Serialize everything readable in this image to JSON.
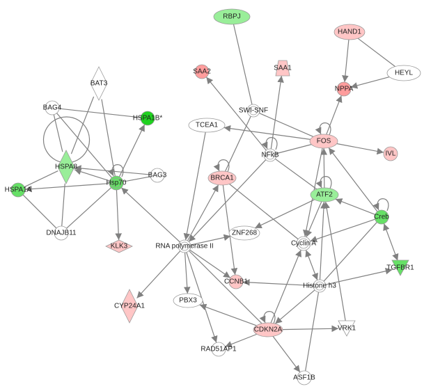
{
  "colors": {
    "white": "#ffffff",
    "pink": "#ffc6c6",
    "red": "#ff9d9d",
    "light_green": "#99ee99",
    "green": "#66e066",
    "bright_green": "#1fd21f",
    "edge": "#808080"
  },
  "nodes": [
    {
      "id": "RBPJ",
      "label": "RBPJ",
      "shape": "ellipse",
      "color": "light_green"
    },
    {
      "id": "HAND1",
      "label": "HAND1",
      "shape": "ellipse",
      "color": "pink"
    },
    {
      "id": "SAA2",
      "label": "SAA2",
      "shape": "circle",
      "color": "red"
    },
    {
      "id": "SAA1",
      "label": "SAA1",
      "shape": "trapezoid",
      "color": "pink"
    },
    {
      "id": "HEYL",
      "label": "HEYL",
      "shape": "ellipse",
      "color": "white"
    },
    {
      "id": "NPPA",
      "label": "NPPA",
      "shape": "circle",
      "color": "red"
    },
    {
      "id": "BAT3",
      "label": "BAT3",
      "shape": "diamond-tall",
      "color": "white"
    },
    {
      "id": "SWISNF",
      "label": "SWI-SNF",
      "shape": "double-circle",
      "color": "white"
    },
    {
      "id": "BAG4",
      "label": "BAG4",
      "shape": "circle",
      "color": "white"
    },
    {
      "id": "HSPA1B",
      "label": "HSPA1B*",
      "shape": "circle",
      "color": "bright_green"
    },
    {
      "id": "TCEA1",
      "label": "TCEA1",
      "shape": "ellipse",
      "color": "white"
    },
    {
      "id": "FOS",
      "label": "FOS",
      "shape": "ellipse",
      "color": "pink"
    },
    {
      "id": "IVL",
      "label": "IVL",
      "shape": "circle",
      "color": "pink"
    },
    {
      "id": "NFkB",
      "label": "NFkB",
      "shape": "double-circle",
      "color": "white"
    },
    {
      "id": "HSPA8",
      "label": "HSPA8",
      "shape": "diamond-tall",
      "color": "light_green"
    },
    {
      "id": "BAG3",
      "label": "BAG3",
      "shape": "circle",
      "color": "white"
    },
    {
      "id": "Hsp70",
      "label": "Hsp70",
      "shape": "double-circle",
      "color": "green"
    },
    {
      "id": "BRCA1",
      "label": "BRCA1",
      "shape": "ellipse",
      "color": "pink"
    },
    {
      "id": "HSPA1A",
      "label": "HSPA1A",
      "shape": "circle",
      "color": "green"
    },
    {
      "id": "ATF2",
      "label": "ATF2",
      "shape": "ellipse",
      "color": "light_green"
    },
    {
      "id": "Creb",
      "label": "Creb",
      "shape": "circle",
      "color": "green"
    },
    {
      "id": "DNAJB11",
      "label": "DNAJB11",
      "shape": "circle",
      "color": "white"
    },
    {
      "id": "ZNF268",
      "label": "ZNF268",
      "shape": "ellipse",
      "color": "white"
    },
    {
      "id": "CyclinA",
      "label": "Cyclin A",
      "shape": "double-circle",
      "color": "white"
    },
    {
      "id": "KLK3",
      "label": "KLK3",
      "shape": "diamond-wide",
      "color": "pink"
    },
    {
      "id": "RNAPII",
      "label": "RNA polymerase II",
      "shape": "double-circle",
      "color": "white"
    },
    {
      "id": "TGFBR1",
      "label": "TGFBR1",
      "shape": "triangle-down",
      "color": "green"
    },
    {
      "id": "CCNB1",
      "label": "CCNB1",
      "shape": "circle",
      "color": "pink"
    },
    {
      "id": "HistoneH3",
      "label": "Histone h3",
      "shape": "double-circle",
      "color": "white"
    },
    {
      "id": "CYP24A1",
      "label": "CYP24A1",
      "shape": "diamond-tall",
      "color": "pink"
    },
    {
      "id": "PBX3",
      "label": "PBX3",
      "shape": "ellipse",
      "color": "white"
    },
    {
      "id": "CDKN2A",
      "label": "CDKN2A",
      "shape": "ellipse",
      "color": "pink"
    },
    {
      "id": "VRK1",
      "label": "VRK1",
      "shape": "triangle-down",
      "color": "white"
    },
    {
      "id": "RAD51AP1",
      "label": "RAD51AP1",
      "shape": "circle",
      "color": "white"
    },
    {
      "id": "ASF1B",
      "label": "ASF1B",
      "shape": "circle",
      "color": "white"
    }
  ],
  "edges": [
    [
      "HSPA8",
      "BAT3",
      "line"
    ],
    [
      "BAT3",
      "Hsp70",
      "line"
    ],
    [
      "BAG4",
      "HSPA1B",
      "line"
    ],
    [
      "BAG4",
      "HSPA8",
      "line"
    ],
    [
      "BAG4",
      "Hsp70",
      "line"
    ],
    [
      "HSPA8",
      "HSPA8",
      "loop"
    ],
    [
      "Hsp70",
      "Hsp70",
      "loop"
    ],
    [
      "Hsp70",
      "HSPA1B",
      "arrow"
    ],
    [
      "BAG3",
      "HSPA8",
      "arrow"
    ],
    [
      "BAG3",
      "Hsp70",
      "line"
    ],
    [
      "Hsp70",
      "HSPA8",
      "arrow"
    ],
    [
      "Hsp70",
      "HSPA1A",
      "arrow"
    ],
    [
      "HSPA8",
      "HSPA1A",
      "line"
    ],
    [
      "HSPA1A",
      "DNAJB11",
      "line"
    ],
    [
      "HSPA8",
      "DNAJB11",
      "line"
    ],
    [
      "Hsp70",
      "DNAJB11",
      "line"
    ],
    [
      "Hsp70",
      "KLK3",
      "arrow"
    ],
    [
      "RNAPII",
      "Hsp70",
      "arrow"
    ],
    [
      "RBPJ",
      "SWISNF",
      "line"
    ],
    [
      "SWISNF",
      "BRCA1",
      "line"
    ],
    [
      "SWISNF",
      "FOS",
      "line"
    ],
    [
      "NFkB",
      "SAA2",
      "arrow"
    ],
    [
      "NFkB",
      "SAA1",
      "arrow"
    ],
    [
      "NFkB",
      "NFkB",
      "loop"
    ],
    [
      "FOS",
      "TCEA1",
      "arrow"
    ],
    [
      "FOS",
      "NFkB",
      "line"
    ],
    [
      "FOS",
      "NPPA",
      "arrow"
    ],
    [
      "HAND1",
      "NPPA",
      "arrow"
    ],
    [
      "HEYL",
      "NPPA",
      "arrow"
    ],
    [
      "HAND1",
      "HEYL",
      "line"
    ],
    [
      "FOS",
      "IVL",
      "arrow"
    ],
    [
      "FOS",
      "FOS",
      "loop"
    ],
    [
      "NFkB",
      "ATF2",
      "line"
    ],
    [
      "NFkB",
      "RNAPII",
      "arrow"
    ],
    [
      "TCEA1",
      "RNAPII",
      "arrow"
    ],
    [
      "BRCA1",
      "BRCA1",
      "loop"
    ],
    [
      "RNAPII",
      "BRCA1",
      "arrow"
    ],
    [
      "BRCA1",
      "CCNB1",
      "arrow"
    ],
    [
      "BRCA1",
      "CyclinA",
      "line"
    ],
    [
      "ATF2",
      "FOS",
      "arrow"
    ],
    [
      "ATF2",
      "ATF2",
      "loop"
    ],
    [
      "ATF2",
      "ZNF268",
      "arrow"
    ],
    [
      "ATF2",
      "CyclinA",
      "arrow"
    ],
    [
      "FOS",
      "CyclinA",
      "arrow"
    ],
    [
      "Creb",
      "FOS",
      "arrow"
    ],
    [
      "Creb",
      "ATF2",
      "arrow"
    ],
    [
      "Creb",
      "Creb",
      "loop"
    ],
    [
      "Creb",
      "CyclinA",
      "arrow"
    ],
    [
      "Creb",
      "TGFBR1",
      "both"
    ],
    [
      "Creb",
      "HistoneH3",
      "line"
    ],
    [
      "RNAPII",
      "ZNF268",
      "arrow"
    ],
    [
      "RNAPII",
      "CCNB1",
      "arrow"
    ],
    [
      "RNAPII",
      "PBX3",
      "arrow"
    ],
    [
      "RNAPII",
      "RAD51AP1",
      "arrow"
    ],
    [
      "RNAPII",
      "CDKN2A",
      "line"
    ],
    [
      "RNAPII",
      "CYP24A1",
      "arrow"
    ],
    [
      "CyclinA",
      "HistoneH3",
      "both"
    ],
    [
      "HistoneH3",
      "CCNB1",
      "arrow"
    ],
    [
      "HistoneH3",
      "TGFBR1",
      "arrow"
    ],
    [
      "HistoneH3",
      "CDKN2A",
      "arrow"
    ],
    [
      "HistoneH3",
      "ASF1B",
      "line"
    ],
    [
      "HistoneH3",
      "ATF2",
      "arrow"
    ],
    [
      "CDKN2A",
      "CyclinA",
      "arrow"
    ],
    [
      "CDKN2A",
      "CDKN2A",
      "loop"
    ],
    [
      "CDKN2A",
      "PBX3",
      "arrow"
    ],
    [
      "CDKN2A",
      "VRK1",
      "arrow"
    ],
    [
      "CDKN2A",
      "RAD51AP1",
      "arrow"
    ],
    [
      "CDKN2A",
      "ASF1B",
      "arrow"
    ],
    [
      "VRK1",
      "ATF2",
      "arrow"
    ]
  ]
}
